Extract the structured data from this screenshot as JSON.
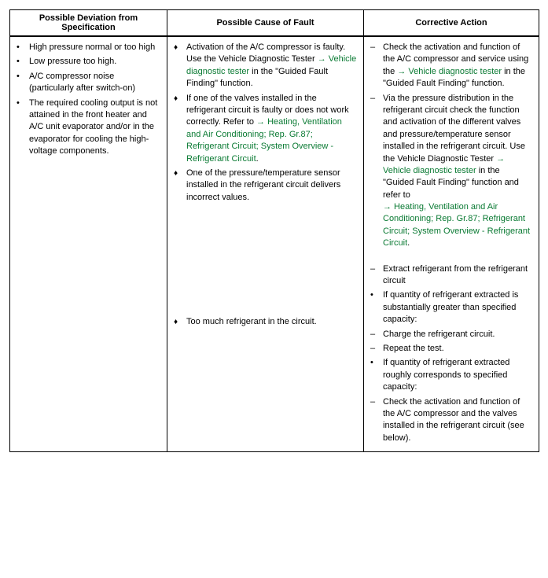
{
  "headers": {
    "col1": "Possible Deviation from Specification",
    "col2": "Possible Cause of Fault",
    "col3": "Corrective Action"
  },
  "col1": {
    "items": [
      "High pressure normal or too high",
      "Low pressure too high.",
      "A/C compressor noise (particularly after switch-on)",
      "The required cooling output is not attained in the front heater and A/C unit evaporator and/or in the evaporator for cooling the high-voltage components."
    ]
  },
  "col2": {
    "block1": [
      {
        "pre": "Activation of the A/C compressor is faulty. Use the Vehicle Diagnostic Tester ",
        "link": "→ Vehicle diagnostic tester",
        "post": " in the \"Guided Fault Finding\" function."
      },
      {
        "pre": "If one of the valves installed in the refrigerant circuit is faulty or does not work correctly. Refer to ",
        "link": "→ Heating, Ventilation and Air Conditioning; Rep. Gr.87; Refrigerant Circuit; System Overview - Refrigerant Circuit",
        "post": "."
      },
      {
        "pre": "One of the pressure/temperature sensor installed in the refrigerant circuit delivers incorrect values.",
        "link": "",
        "post": ""
      }
    ],
    "block2": [
      {
        "pre": "Too much refrigerant in the circuit.",
        "link": "",
        "post": ""
      }
    ]
  },
  "col3": {
    "block1": [
      {
        "type": "dash",
        "pre": "Check the activation and function of the A/C compressor and service using the ",
        "link": "→ Vehicle diagnostic tester",
        "post": " in the \"Guided Fault Finding\" function."
      },
      {
        "type": "dash",
        "pre": "Via the pressure distribution in the refrigerant circuit check the function and activation of the different valves and pressure/temperature sensor installed in the refrigerant circuit. Use the Vehicle Diagnostic Tester ",
        "link": "→ Vehicle diagnostic tester",
        "mid": " in the \"Guided Fault Finding\" function and refer to ",
        "link2": "→ Heating, Ventilation and Air Conditioning; Rep. Gr.87; Refrigerant Circuit; System Overview - Refrigerant Circuit",
        "post": "."
      }
    ],
    "block2": [
      {
        "type": "dash",
        "pre": "Extract refrigerant from the refrigerant circuit",
        "link": "",
        "post": ""
      },
      {
        "type": "dot",
        "pre": "If quantity of refrigerant extracted is substantially greater than specified capacity:",
        "link": "",
        "post": ""
      },
      {
        "type": "dash",
        "pre": "Charge the refrigerant circuit.",
        "link": "",
        "post": ""
      },
      {
        "type": "dash",
        "pre": "Repeat the test.",
        "link": "",
        "post": ""
      },
      {
        "type": "dot",
        "pre": "If quantity of refrigerant extracted roughly corresponds to specified capacity:",
        "link": "",
        "post": ""
      },
      {
        "type": "dash",
        "pre": "Check the activation and function of the A/C compressor and the valves installed in the refrigerant circuit (see below).",
        "link": "",
        "post": ""
      }
    ]
  }
}
